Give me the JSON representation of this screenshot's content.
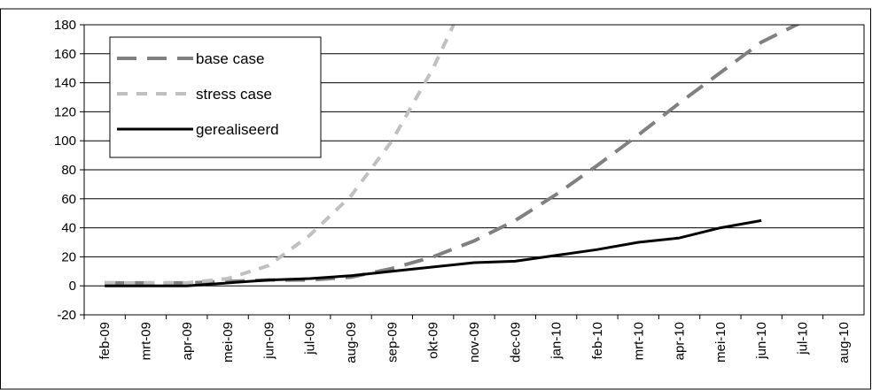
{
  "chart_data": {
    "type": "line",
    "categories": [
      "feb-09",
      "mrt-09",
      "apr-09",
      "mei-09",
      "jun-09",
      "jul-09",
      "aug-09",
      "sep-09",
      "okt-09",
      "nov-09",
      "dec-09",
      "jan-10",
      "feb-10",
      "mrt-10",
      "apr-10",
      "mei-10",
      "jun-10",
      "jul-10",
      "aug-10"
    ],
    "series": [
      {
        "name": "base case",
        "color": "#808080",
        "dash": "22,12",
        "width": 4,
        "values": [
          2,
          2,
          2,
          3,
          4,
          4,
          6,
          12,
          20,
          31,
          45,
          63,
          83,
          104,
          126,
          147,
          168,
          182,
          null
        ]
      },
      {
        "name": "stress case",
        "color": "#c0c0c0",
        "dash": "12,10",
        "width": 4,
        "values": [
          2,
          2,
          2,
          5,
          14,
          35,
          62,
          100,
          150,
          210,
          null,
          null,
          null,
          null,
          null,
          null,
          null,
          null,
          null
        ]
      },
      {
        "name": "gerealiseerd",
        "color": "#000000",
        "dash": "none",
        "width": 3,
        "values": [
          0,
          0,
          0,
          2,
          4,
          5,
          7,
          10,
          13,
          16,
          17,
          21,
          25,
          30,
          33,
          40,
          45,
          null,
          null
        ]
      }
    ],
    "ylim": [
      -20,
      180
    ],
    "yticks": [
      -20,
      0,
      20,
      40,
      60,
      80,
      100,
      120,
      140,
      160,
      180
    ],
    "grid": true
  }
}
